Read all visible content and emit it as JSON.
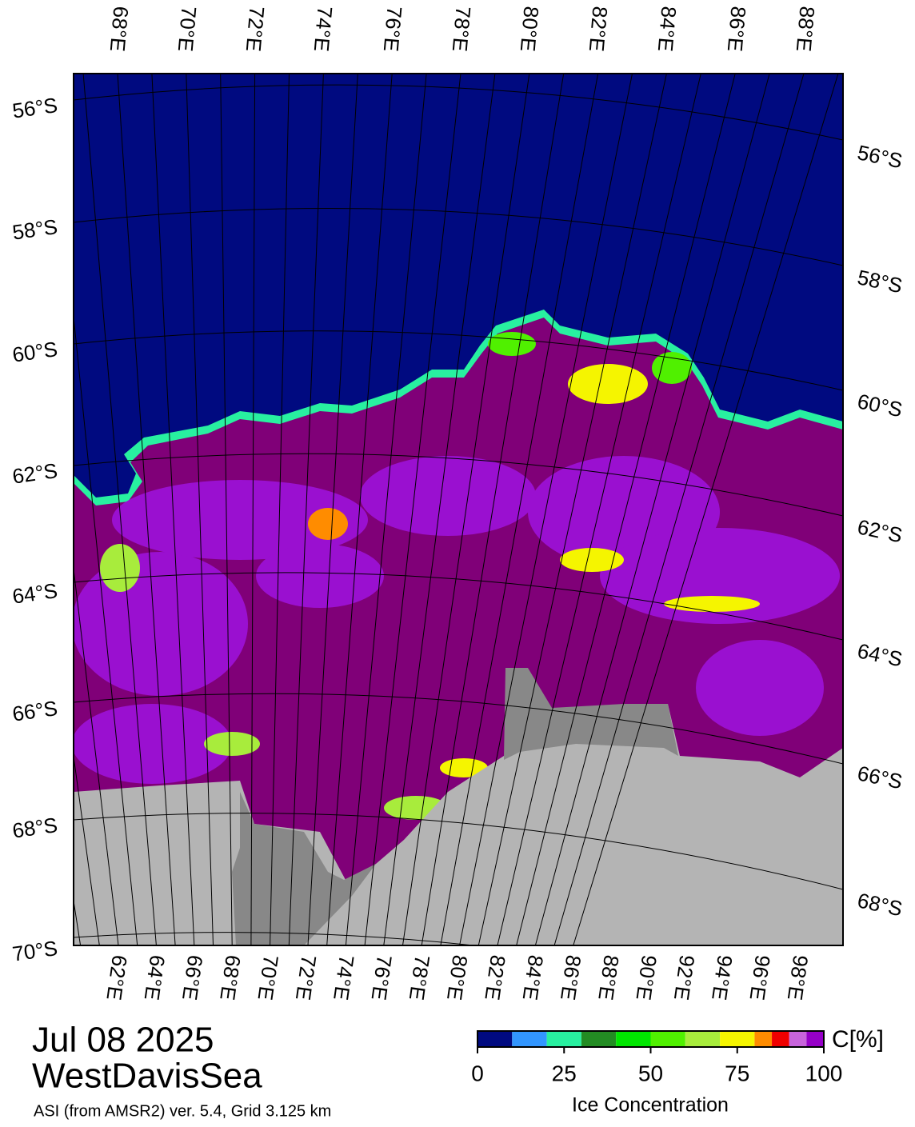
{
  "map": {
    "top_lon_labels": [
      "68°E",
      "70°E",
      "72°E",
      "74°E",
      "76°E",
      "78°E",
      "80°E",
      "82°E",
      "84°E",
      "86°E",
      "88°E"
    ],
    "bottom_lon_labels": [
      "62°E",
      "64°E",
      "66°E",
      "68°E",
      "70°E",
      "72°E",
      "74°E",
      "76°E",
      "78°E",
      "80°E",
      "82°E",
      "84°E",
      "86°E",
      "88°E",
      "90°E",
      "92°E",
      "94°E",
      "96°E",
      "98°E"
    ],
    "left_lat_labels": [
      "56°S",
      "58°S",
      "60°S",
      "62°S",
      "64°S",
      "66°S",
      "68°S",
      "70°S"
    ],
    "right_lat_labels": [
      "56°S",
      "58°S",
      "60°S",
      "62°S",
      "64°S",
      "66°S",
      "68°S"
    ]
  },
  "footer": {
    "date": "Jul 08 2025",
    "region": "WestDavisSea",
    "caption": "ASI (from AMSR2) ver. 5.4,  Grid 3.125 km"
  },
  "colorbar": {
    "unit": "C[%]",
    "title": "Ice Concentration",
    "range": [
      0,
      100
    ],
    "ticks": [
      0,
      25,
      50,
      75,
      100
    ],
    "bounds": [
      0,
      10,
      20,
      30,
      40,
      50,
      60,
      70,
      80,
      85,
      90,
      95,
      100
    ],
    "colors": [
      "#000a80",
      "#3296ff",
      "#28f0a0",
      "#238c23",
      "#00e600",
      "#50f000",
      "#a8ec3c",
      "#f5f500",
      "#ff8c00",
      "#f00000",
      "#c864dc",
      "#9600c8"
    ]
  }
}
